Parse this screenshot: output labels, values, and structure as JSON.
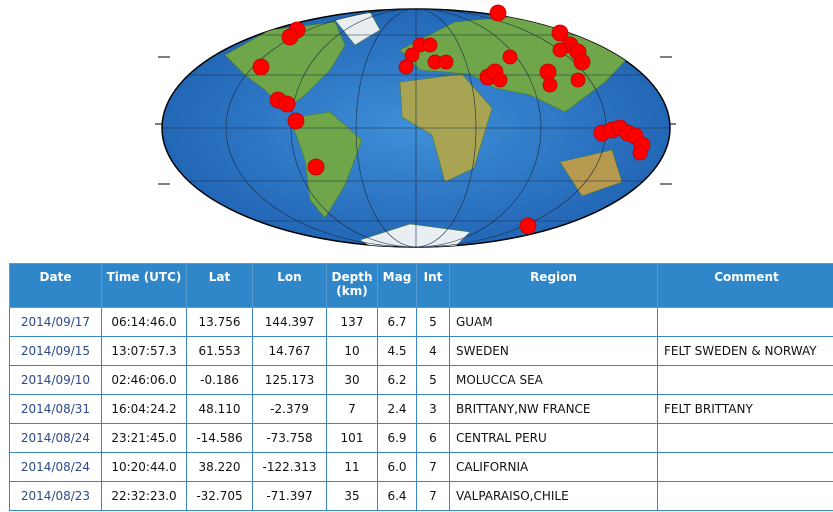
{
  "table": {
    "headers": [
      "Date",
      "Time (UTC)",
      "Lat",
      "Lon",
      "Depth (km)",
      "Mag",
      "Int",
      "Region",
      "Comment"
    ],
    "rows": [
      {
        "date": "2014/09/17",
        "time": "06:14:46.0",
        "lat": "13.756",
        "lon": "144.397",
        "depth": "137",
        "mag": "6.7",
        "int": "5",
        "region": "GUAM"
      },
      {
        "date": "2014/09/15",
        "time": "13:07:57.3",
        "lat": "61.553",
        "lon": "14.767",
        "depth": "10",
        "mag": "4.5",
        "int": "4",
        "region": "SWEDEN",
        "comment": "FELT SWEDEN & NORWAY"
      },
      {
        "date": "2014/09/10",
        "time": "02:46:06.0",
        "lat": "-0.186",
        "lon": "125.173",
        "depth": "30",
        "mag": "6.2",
        "int": "5",
        "region": "MOLUCCA SEA"
      },
      {
        "date": "2014/08/31",
        "time": "16:04:24.2",
        "lat": "48.110",
        "lon": "-2.379",
        "depth": "7",
        "mag": "2.4",
        "int": "3",
        "region": "BRITTANY,NW FRANCE",
        "comment": "FELT BRITTANY"
      },
      {
        "date": "2014/08/24",
        "time": "23:21:45.0",
        "lat": "-14.586",
        "lon": "-73.758",
        "depth": "101",
        "mag": "6.9",
        "int": "6",
        "region": "CENTRAL PERU"
      },
      {
        "date": "2014/08/24",
        "time": "10:20:44.0",
        "lat": "38.220",
        "lon": "-122.313",
        "depth": "11",
        "mag": "6.0",
        "int": "7",
        "region": "CALIFORNIA"
      },
      {
        "date": "2014/08/23",
        "time": "22:32:23.0",
        "lat": "-32.705",
        "lon": "-71.397",
        "depth": "35",
        "mag": "6.4",
        "int": "7",
        "region": "VALPARAISO,CHILE"
      }
    ]
  }
}
